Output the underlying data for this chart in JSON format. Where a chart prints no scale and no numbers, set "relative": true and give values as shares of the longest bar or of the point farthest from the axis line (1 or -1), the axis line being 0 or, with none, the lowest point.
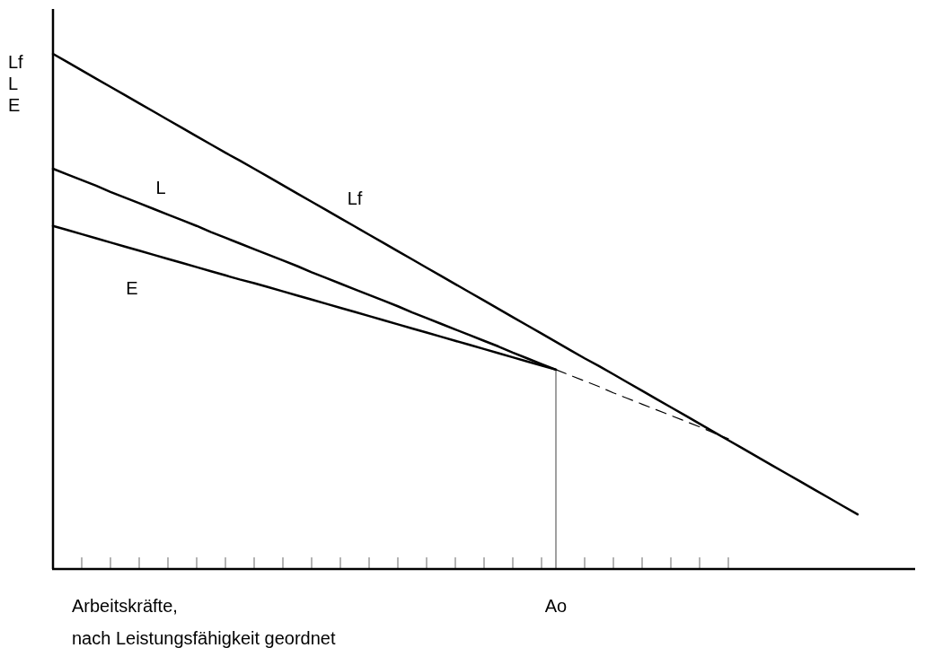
{
  "chart_data": {
    "type": "line",
    "relative": true,
    "xlabel": "Arbeitskräfte,\nnach Leistungsfähigkeit geordnet",
    "ylabel": "Lf\nL\nE",
    "categories": [
      null,
      null,
      null,
      null,
      null,
      null,
      null,
      null,
      null,
      null,
      null,
      null,
      null,
      null,
      null,
      null,
      null,
      null,
      null,
      null,
      null,
      null,
      null,
      null,
      null,
      null,
      null,
      null,
      null,
      null,
      null,
      null,
      null,
      null,
      null,
      null,
      null,
      null,
      null,
      null,
      null,
      null,
      null,
      null,
      null,
      null,
      null,
      null,
      null,
      null,
      null,
      null,
      null,
      null,
      null,
      null,
      null,
      null,
      null,
      null,
      null
    ],
    "series": [
      {
        "name": "Lf",
        "color": "#000000",
        "values": [
          1.0,
          0.984,
          0.968,
          0.952,
          0.936,
          0.92,
          0.904,
          0.888,
          0.872,
          0.856,
          0.84,
          0.824,
          0.808,
          0.793,
          0.777,
          0.761,
          0.745,
          0.729,
          0.713,
          0.697,
          0.681,
          0.665,
          0.649,
          0.633,
          0.617,
          0.601,
          0.585,
          0.569,
          0.553,
          0.537,
          0.521,
          0.505,
          0.489,
          0.473,
          0.457,
          0.441,
          0.425,
          0.409,
          0.394,
          0.378,
          0.362,
          0.346,
          0.33,
          0.314,
          0.298,
          0.282,
          0.266,
          0.25,
          0.234,
          0.218,
          0.202,
          0.186,
          0.17,
          0.154,
          0.138,
          0.122,
          0.106,
          null,
          null,
          null,
          null
        ]
      },
      {
        "name": "L",
        "color": "#000000",
        "values": [
          0.777,
          0.766,
          0.755,
          0.744,
          0.732,
          0.721,
          0.71,
          0.699,
          0.688,
          0.677,
          0.666,
          0.654,
          0.643,
          0.632,
          0.621,
          0.61,
          0.599,
          0.588,
          0.576,
          0.565,
          0.554,
          0.543,
          0.532,
          0.521,
          0.51,
          0.498,
          0.487,
          0.476,
          0.465,
          0.454,
          0.443,
          0.432,
          0.42,
          0.409,
          0.398,
          0.387,
          null,
          null,
          null,
          null,
          null,
          null,
          null,
          null,
          null,
          null,
          null,
          null,
          null,
          null,
          null,
          null,
          null,
          null,
          null,
          null,
          null,
          null,
          null,
          null,
          null
        ]
      },
      {
        "color": "#000000",
        "line_style": "dashed",
        "values": [
          null,
          null,
          null,
          null,
          null,
          null,
          null,
          null,
          null,
          null,
          null,
          null,
          null,
          null,
          null,
          null,
          null,
          null,
          null,
          null,
          null,
          null,
          null,
          null,
          null,
          null,
          null,
          null,
          null,
          null,
          null,
          null,
          null,
          null,
          null,
          0.387,
          0.376,
          0.365,
          0.354,
          0.342,
          0.331,
          0.32,
          0.309,
          0.298,
          0.287,
          0.276,
          0.264,
          0.253,
          null,
          null,
          null,
          null,
          null,
          null,
          null,
          null,
          null,
          null,
          null,
          null,
          null
        ]
      },
      {
        "name": "E",
        "color": "#000000",
        "values": [
          0.666,
          0.658,
          0.65,
          0.642,
          0.634,
          0.626,
          0.618,
          0.61,
          0.602,
          0.594,
          0.586,
          0.578,
          0.57,
          0.562,
          0.555,
          0.547,
          0.539,
          0.531,
          0.523,
          0.515,
          0.507,
          0.499,
          0.491,
          0.483,
          0.475,
          0.467,
          0.459,
          0.451,
          0.443,
          0.435,
          0.427,
          0.419,
          0.411,
          0.403,
          0.395,
          0.387,
          null,
          null,
          null,
          null,
          null,
          null,
          null,
          null,
          null,
          null,
          null,
          null,
          null,
          null,
          null,
          null,
          null,
          null,
          null,
          null,
          null,
          null,
          null,
          null,
          null
        ]
      }
    ],
    "annotations": [
      "Ao"
    ]
  }
}
